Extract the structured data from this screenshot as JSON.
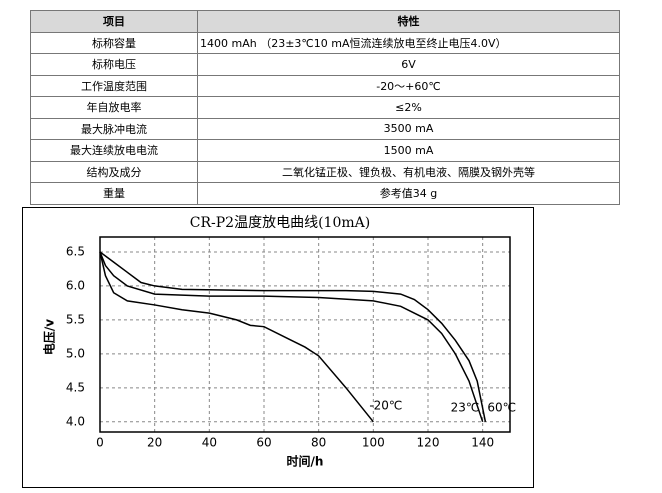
{
  "table": {
    "header": [
      "项目",
      "特性"
    ],
    "rows": [
      [
        "标称容量",
        "1400 mAh （23±3℃10 mA恒流连续放电至终止电压4.0V）"
      ],
      [
        "标称电压",
        "6V"
      ],
      [
        "工作温度范围",
        "-20～+60℃"
      ],
      [
        "年自放电率",
        "≤2%"
      ],
      [
        "最大脉冲电流",
        "3500 mA"
      ],
      [
        "最大连续放电电流",
        "1500  mA"
      ],
      [
        "结构及成分",
        "二氧化锰正极、锂负极、有机电液、隔膜及钢外壳等"
      ],
      [
        "重量",
        "参考值34 g"
      ]
    ]
  },
  "chart_data": {
    "type": "line",
    "title": "CR-P2温度放电曲线(10mA)",
    "x_label": "时间/h",
    "y_label": "电压/v",
    "xlim": [
      0,
      150
    ],
    "ylim": [
      3.85,
      6.72
    ],
    "xticks": [
      0,
      20,
      40,
      60,
      80,
      100,
      120,
      140
    ],
    "yticks": [
      {
        "value": 4,
        "label": "4.0"
      },
      4.5,
      {
        "value": 5,
        "label": "5.0"
      },
      5.5,
      {
        "value": 6,
        "label": "6.0"
      },
      6.5
    ],
    "grid": true,
    "series": [
      {
        "name": "-20℃",
        "color": "#000000",
        "x": [
          0,
          2,
          5,
          10,
          20,
          30,
          40,
          45,
          50,
          55,
          60,
          70,
          75,
          80,
          90,
          100
        ],
        "values": [
          6.5,
          6.15,
          5.9,
          5.78,
          5.72,
          5.65,
          5.6,
          5.55,
          5.5,
          5.42,
          5.4,
          5.2,
          5.1,
          4.97,
          4.5,
          4.0
        ]
      },
      {
        "name": "23℃",
        "color": "#000000",
        "x": [
          0,
          2,
          5,
          10,
          20,
          40,
          60,
          80,
          100,
          110,
          120,
          125,
          130,
          135,
          140
        ],
        "values": [
          6.5,
          6.3,
          6.15,
          6.0,
          5.88,
          5.85,
          5.85,
          5.83,
          5.78,
          5.7,
          5.5,
          5.3,
          5.0,
          4.6,
          4.0
        ]
      },
      {
        "name": "60℃",
        "color": "#000000",
        "x": [
          0,
          5,
          10,
          15,
          20,
          30,
          60,
          90,
          100,
          110,
          115,
          120,
          125,
          130,
          135,
          138,
          140,
          141
        ],
        "values": [
          6.5,
          6.35,
          6.2,
          6.05,
          6.0,
          5.95,
          5.93,
          5.93,
          5.92,
          5.88,
          5.8,
          5.65,
          5.45,
          5.2,
          4.9,
          4.6,
          4.2,
          4.0
        ]
      }
    ]
  }
}
